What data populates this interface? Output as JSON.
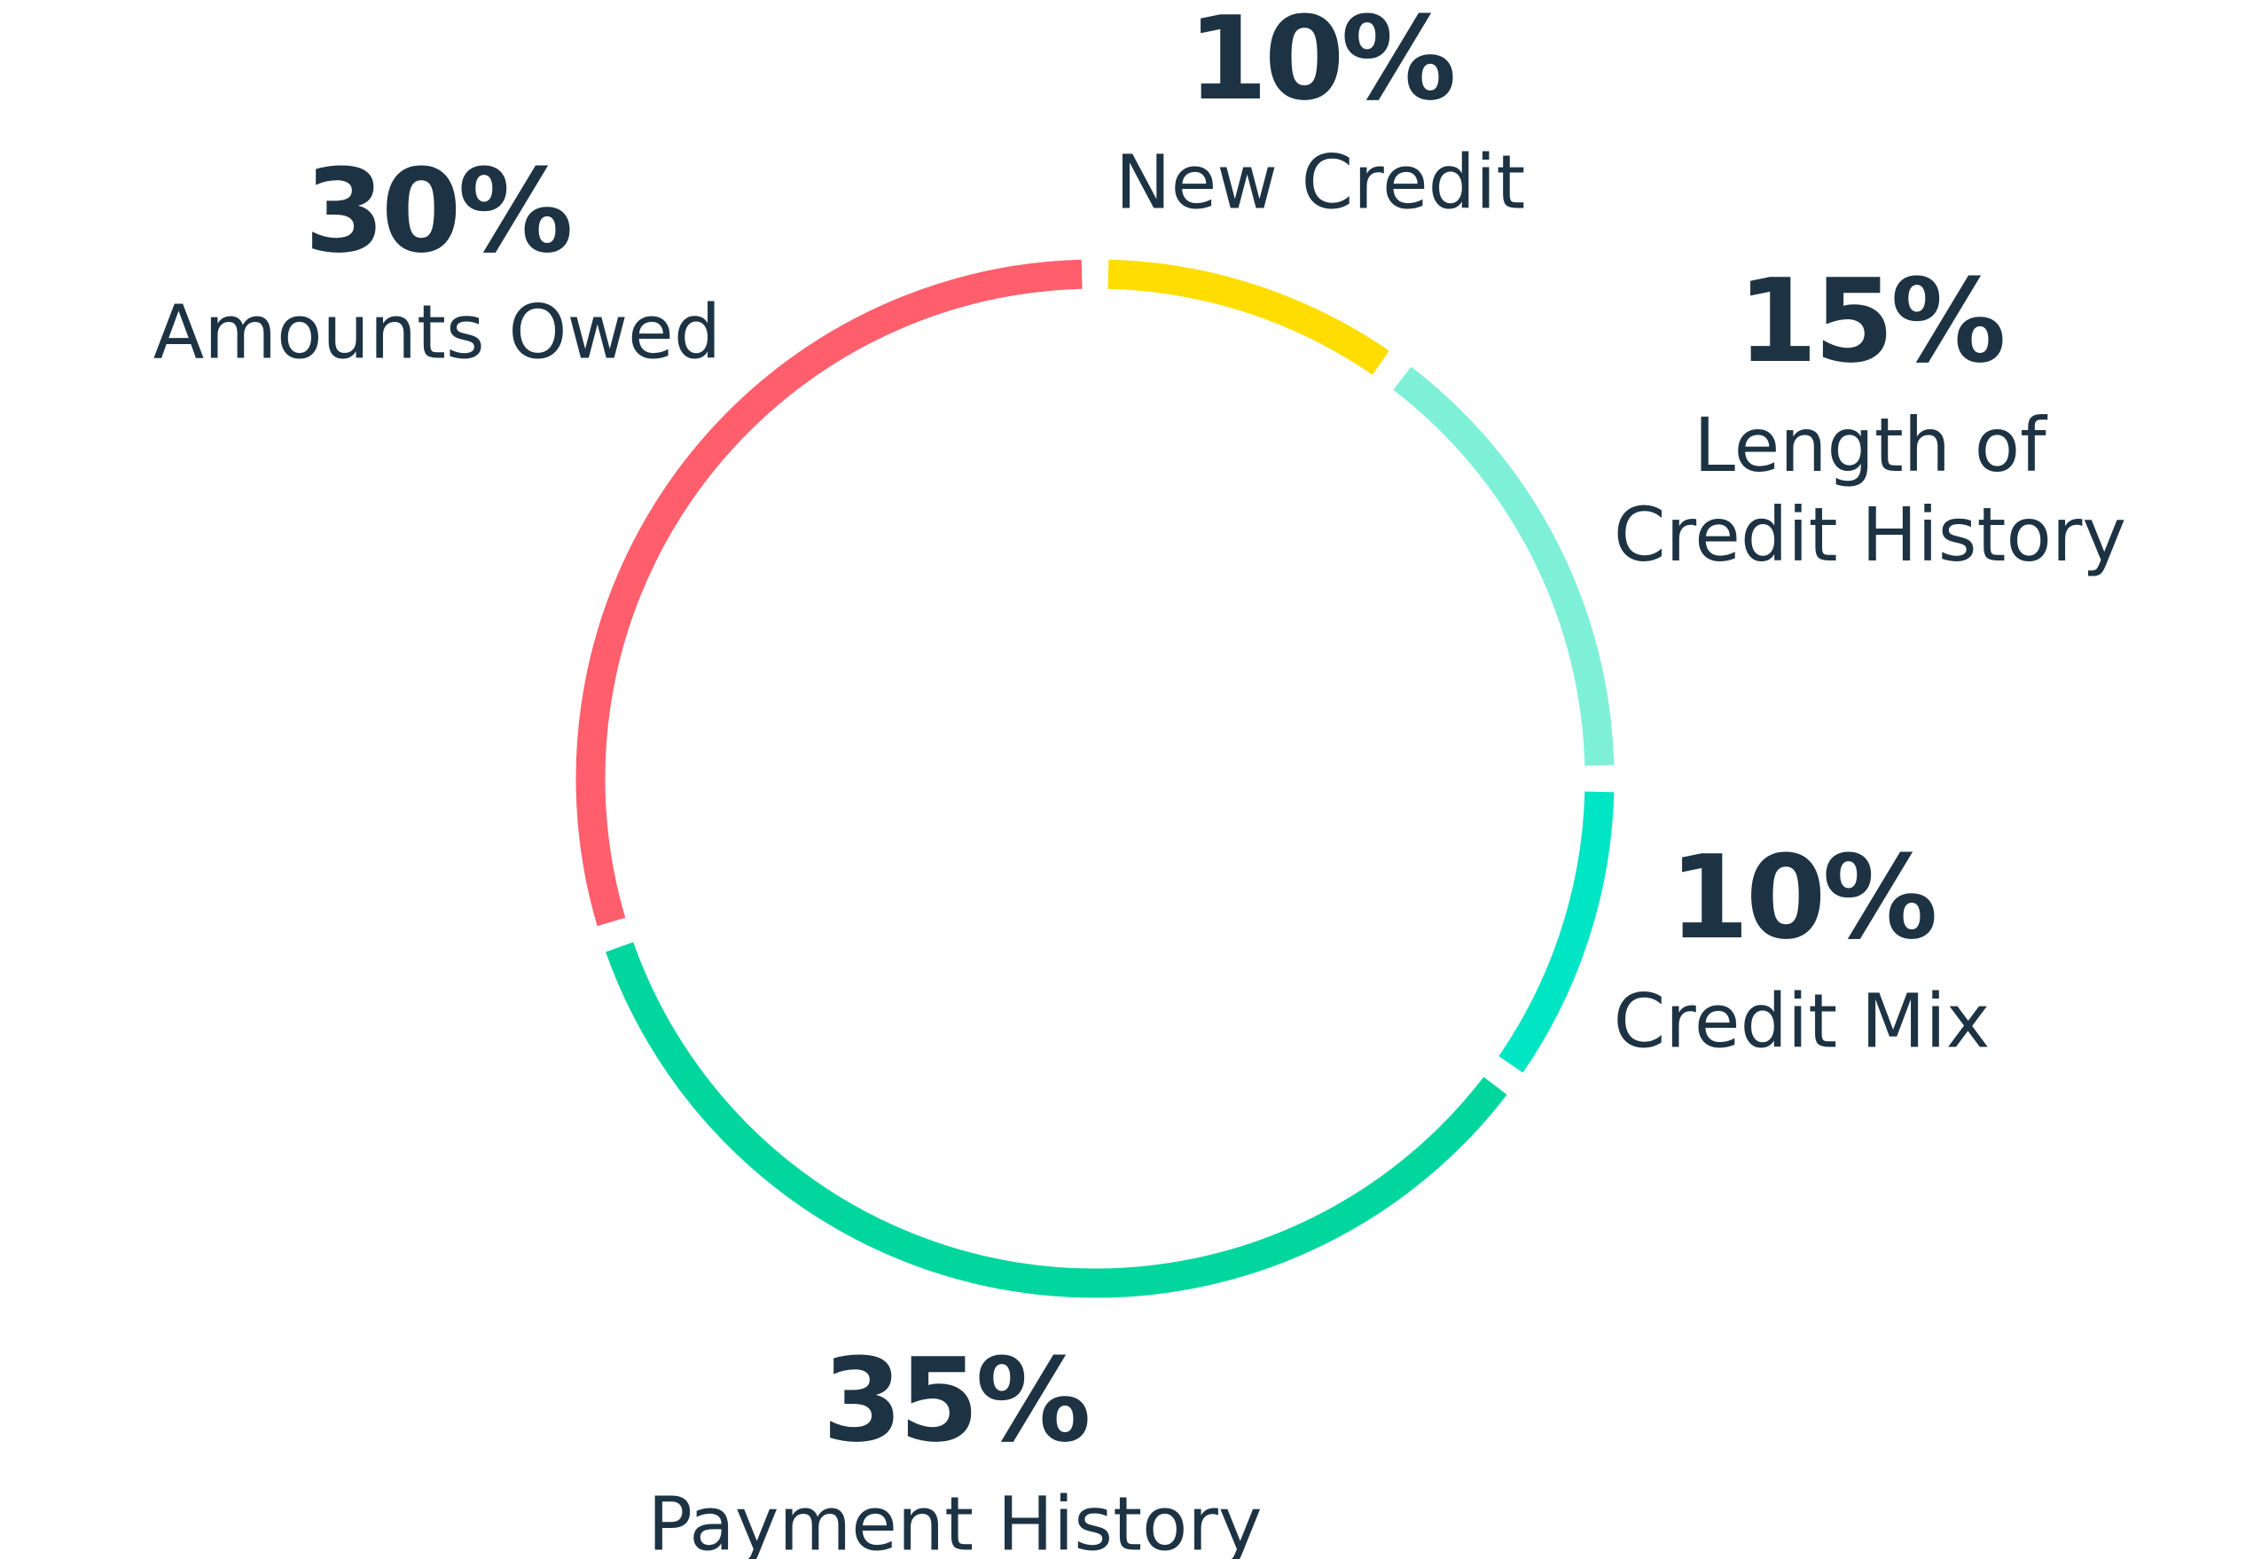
{
  "chart_data": {
    "type": "donut",
    "categories": [
      "New Credit",
      "Length of Credit History",
      "Credit Mix",
      "Payment History",
      "Amounts Owed"
    ],
    "values": [
      10,
      15,
      10,
      35,
      30
    ],
    "value_labels": [
      "10%",
      "15%",
      "10%",
      "35%",
      "30%"
    ],
    "colors": [
      "#FFDD00",
      "#7FF0D8",
      "#00E5C4",
      "#00D69E",
      "#FF5E6C"
    ]
  }
}
